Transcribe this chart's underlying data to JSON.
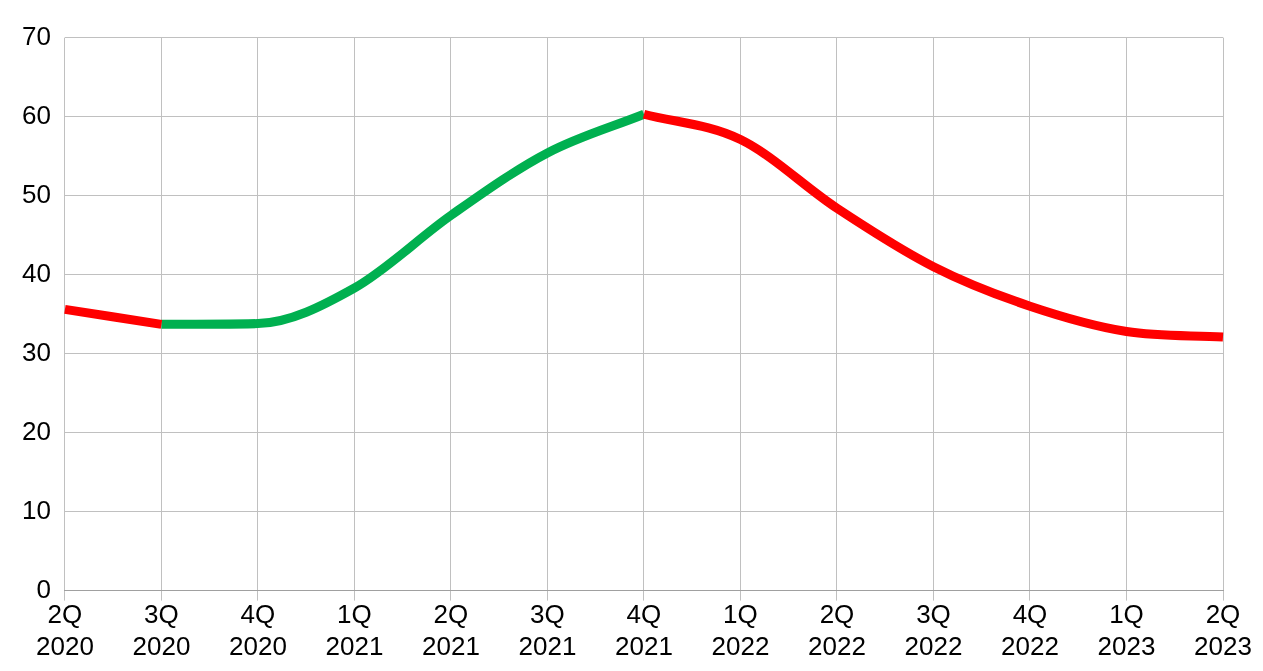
{
  "chart_data": {
    "type": "line",
    "categories": [
      "2Q 2020",
      "3Q 2020",
      "4Q 2020",
      "1Q 2021",
      "2Q 2021",
      "3Q 2021",
      "4Q 2021",
      "1Q 2022",
      "2Q 2022",
      "3Q 2022",
      "4Q 2022",
      "1Q 2023",
      "2Q 2023"
    ],
    "series": [
      {
        "color": "#ff0000",
        "values": [
          35.6,
          33.7,
          null,
          null,
          null,
          null,
          60.3,
          57.1,
          48.4,
          41.0,
          36.0,
          32.8,
          32.1
        ]
      },
      {
        "color": "#00b050",
        "values": [
          null,
          33.7,
          33.8,
          38.3,
          47.5,
          55.4,
          60.3,
          null,
          null,
          null,
          null,
          null,
          null
        ]
      }
    ],
    "ylim": [
      0,
      70
    ],
    "yticks": [
      0,
      10,
      20,
      30,
      40,
      50,
      60,
      70
    ],
    "grid": true,
    "legend": false,
    "marker": "none",
    "line_style": "solid"
  }
}
